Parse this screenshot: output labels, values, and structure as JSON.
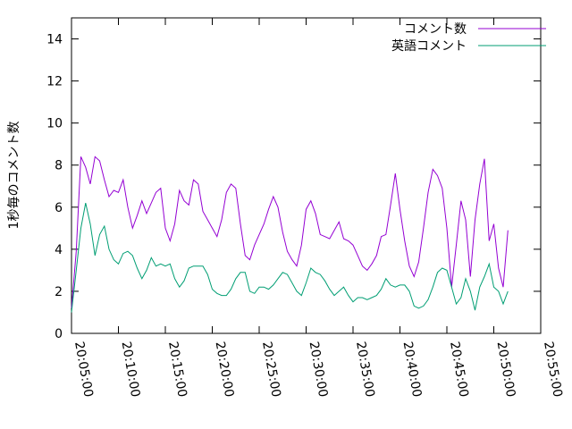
{
  "chart_data": {
    "type": "line",
    "ylabel": "1秒毎のコメント数",
    "ylim": [
      0,
      15
    ],
    "yticks": [
      0,
      2,
      4,
      6,
      8,
      10,
      12,
      14
    ],
    "xlim": [
      "20:05:00",
      "20:55:00"
    ],
    "xticks": [
      "20:05:00",
      "20:10:00",
      "20:15:00",
      "20:20:00",
      "20:25:00",
      "20:30:00",
      "20:35:00",
      "20:40:00",
      "20:45:00",
      "20:50:00",
      "20:55:00"
    ],
    "legend": "upper right",
    "x": [
      "20:05:00",
      "20:05:30",
      "20:06:00",
      "20:06:30",
      "20:07:00",
      "20:07:30",
      "20:08:00",
      "20:08:30",
      "20:09:00",
      "20:09:30",
      "20:10:00",
      "20:10:30",
      "20:11:00",
      "20:11:30",
      "20:12:00",
      "20:12:30",
      "20:13:00",
      "20:13:30",
      "20:14:00",
      "20:14:30",
      "20:15:00",
      "20:15:30",
      "20:16:00",
      "20:16:30",
      "20:17:00",
      "20:17:30",
      "20:18:00",
      "20:18:30",
      "20:19:00",
      "20:19:30",
      "20:20:00",
      "20:20:30",
      "20:21:00",
      "20:21:30",
      "20:22:00",
      "20:22:30",
      "20:23:00",
      "20:23:30",
      "20:24:00",
      "20:24:30",
      "20:25:00",
      "20:25:30",
      "20:26:00",
      "20:26:30",
      "20:27:00",
      "20:27:30",
      "20:28:00",
      "20:28:30",
      "20:29:00",
      "20:29:30",
      "20:30:00",
      "20:30:30",
      "20:31:00",
      "20:31:30",
      "20:32:00",
      "20:32:30",
      "20:33:00",
      "20:33:30",
      "20:34:00",
      "20:34:30",
      "20:35:00",
      "20:35:30",
      "20:36:00",
      "20:36:30",
      "20:37:00",
      "20:37:30",
      "20:38:00",
      "20:38:30",
      "20:39:00",
      "20:39:30",
      "20:40:00",
      "20:40:30",
      "20:41:00",
      "20:41:30",
      "20:42:00",
      "20:42:30",
      "20:43:00",
      "20:43:30",
      "20:44:00",
      "20:44:30",
      "20:45:00",
      "20:45:30",
      "20:46:00",
      "20:46:30",
      "20:47:00",
      "20:47:30",
      "20:48:00",
      "20:48:30",
      "20:49:00",
      "20:49:30",
      "20:50:00",
      "20:50:30",
      "20:51:00",
      "20:51:30"
    ],
    "series": [
      {
        "name": "コメント数",
        "color": "#9400d3",
        "values": [
          1.2,
          3.9,
          8.4,
          7.9,
          7.1,
          8.4,
          8.2,
          7.3,
          6.5,
          6.8,
          6.7,
          7.3,
          6.0,
          5.0,
          5.6,
          6.3,
          5.7,
          6.2,
          6.7,
          6.9,
          5.0,
          4.4,
          5.2,
          6.8,
          6.3,
          6.1,
          7.3,
          7.1,
          5.8,
          5.4,
          5.0,
          4.6,
          5.4,
          6.7,
          7.1,
          6.9,
          5.2,
          3.7,
          3.5,
          4.2,
          4.7,
          5.2,
          5.9,
          6.5,
          6.0,
          4.8,
          3.9,
          3.5,
          3.2,
          4.2,
          5.9,
          6.3,
          5.7,
          4.7,
          4.6,
          4.5,
          4.9,
          5.3,
          4.5,
          4.4,
          4.2,
          3.7,
          3.2,
          3.0,
          3.3,
          3.7,
          4.6,
          4.7,
          6.1,
          7.6,
          5.9,
          4.4,
          3.2,
          2.7,
          3.4,
          5.0,
          6.7,
          7.8,
          7.5,
          6.9,
          5.0,
          2.2,
          4.2,
          6.3,
          5.4,
          2.7,
          5.4,
          7.1,
          8.3,
          4.4,
          5.2,
          3.1,
          2.2,
          4.9
        ]
      },
      {
        "name": "英語コメント",
        "color": "#009e73",
        "values": [
          1.0,
          3.0,
          5.0,
          6.2,
          5.2,
          3.7,
          4.7,
          5.1,
          4.0,
          3.5,
          3.3,
          3.8,
          3.9,
          3.7,
          3.1,
          2.6,
          3.0,
          3.6,
          3.2,
          3.3,
          3.2,
          3.3,
          2.6,
          2.2,
          2.5,
          3.1,
          3.2,
          3.2,
          3.2,
          2.8,
          2.1,
          1.9,
          1.8,
          1.8,
          2.1,
          2.6,
          2.9,
          2.9,
          2.0,
          1.9,
          2.2,
          2.2,
          2.1,
          2.3,
          2.6,
          2.9,
          2.8,
          2.4,
          2.0,
          1.8,
          2.4,
          3.1,
          2.9,
          2.8,
          2.5,
          2.1,
          1.8,
          2.0,
          2.2,
          1.8,
          1.5,
          1.7,
          1.7,
          1.6,
          1.7,
          1.8,
          2.1,
          2.6,
          2.3,
          2.2,
          2.3,
          2.3,
          2.0,
          1.3,
          1.2,
          1.3,
          1.6,
          2.2,
          2.9,
          3.1,
          3.0,
          2.2,
          1.4,
          1.7,
          2.6,
          2.0,
          1.1,
          2.2,
          2.7,
          3.3,
          2.2,
          2.0,
          1.4,
          2.0
        ]
      }
    ]
  }
}
